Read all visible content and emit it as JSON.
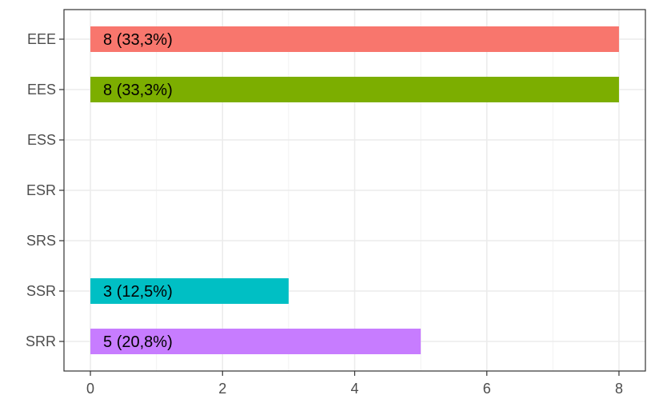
{
  "chart_data": {
    "type": "bar",
    "orientation": "horizontal",
    "categories": [
      "EEE",
      "EES",
      "ESS",
      "ESR",
      "SRS",
      "SSR",
      "SRR"
    ],
    "values": [
      8,
      8,
      0,
      0,
      0,
      3,
      5
    ],
    "data_labels": [
      "8 (33,3%)",
      "8 (33,3%)",
      "",
      "",
      "",
      "3 (12,5%)",
      "5 (20,8%)"
    ],
    "colors": [
      "#F8766D",
      "#7CAE00",
      "#00BE67",
      "#00BFC4",
      "#00A9FF",
      "#00BFC4",
      "#C77CFF"
    ],
    "xticks": [
      0,
      2,
      4,
      6,
      8
    ],
    "xlim": [
      -0.4,
      8.4
    ],
    "title": "",
    "xlabel": "",
    "ylabel": "",
    "grid": true,
    "legend": "none",
    "theme": "bw"
  }
}
